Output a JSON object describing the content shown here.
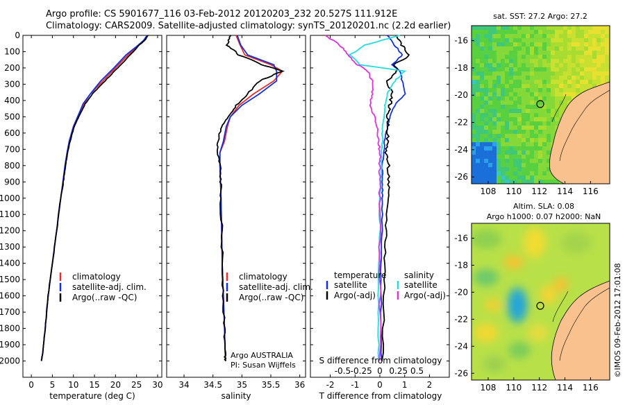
{
  "header": {
    "line1": "Argo profile: CS 5901677_116 03-Feb-2012 20120203_232 20.527S 111.912E",
    "line2": "Climatology: CARS2009. Satellite-adjusted climatology: synTS_20120201.nc (2.2d earlier)"
  },
  "colors": {
    "climatology": "#ee2a24",
    "satellite": "#1030e0",
    "argo": "#000000",
    "sal_sat": "#22dddd",
    "sal_argo": "#e030d8"
  },
  "chart_data": [
    {
      "type": "line",
      "title": "",
      "xlabel": "temperature (deg C)",
      "ylabel": "",
      "xlim": [
        -2,
        31
      ],
      "ylim": [
        2100,
        0
      ],
      "xticks": [
        0,
        5,
        10,
        15,
        20,
        25,
        30
      ],
      "yticks": [
        0,
        100,
        200,
        300,
        400,
        500,
        600,
        700,
        800,
        900,
        1000,
        1100,
        1200,
        1300,
        1400,
        1500,
        1600,
        1700,
        1800,
        1900,
        2000
      ],
      "legend": [
        "climatology",
        "satellite-adj. clim.",
        "Argo(..raw -QC)"
      ],
      "series": [
        {
          "name": "climatology",
          "x": [
            27.6,
            26.8,
            25.6,
            23,
            20,
            17,
            14,
            12.5,
            11,
            10,
            9,
            8.5,
            8,
            7.5,
            7,
            6,
            5,
            4,
            3.3,
            2.7,
            2.4
          ],
          "y": [
            0,
            30,
            60,
            120,
            200,
            280,
            360,
            420,
            500,
            560,
            650,
            720,
            800,
            900,
            1000,
            1200,
            1400,
            1600,
            1800,
            1950,
            2000
          ]
        },
        {
          "name": "satellite-adj. clim.",
          "x": [
            27.5,
            26.7,
            25.4,
            22.5,
            19.6,
            16.5,
            14,
            12.3,
            11,
            10,
            9,
            8.5,
            8,
            7.5,
            7,
            6,
            5,
            4,
            3.3,
            2.7,
            2.4
          ],
          "y": [
            0,
            30,
            60,
            120,
            200,
            280,
            360,
            420,
            500,
            560,
            650,
            720,
            800,
            900,
            1000,
            1200,
            1400,
            1600,
            1800,
            1950,
            2000
          ]
        },
        {
          "name": "Argo(..raw -QC)",
          "x": [
            27.7,
            27,
            25.6,
            23.5,
            20.5,
            17.5,
            14.5,
            12.8,
            11.2,
            10.2,
            9.2,
            8.6,
            8.1,
            7.6,
            7,
            6,
            5,
            4,
            3.3,
            2.7,
            2.4
          ],
          "y": [
            0,
            30,
            60,
            120,
            200,
            280,
            360,
            420,
            500,
            560,
            650,
            720,
            800,
            900,
            1000,
            1200,
            1400,
            1600,
            1800,
            1950,
            2000
          ]
        }
      ]
    },
    {
      "type": "line",
      "title": "",
      "xlabel": "salinity",
      "ylabel": "",
      "xlim": [
        33.7,
        36.1
      ],
      "ylim": [
        2100,
        0
      ],
      "xticks": [
        34,
        34.5,
        35,
        35.5,
        36
      ],
      "legend": [
        "climatology",
        "satellite-adj. clim.",
        "Argo(..raw -QC)"
      ],
      "annotations": [
        "Argo AUSTRALIA",
        "PI: Susan Wijffels"
      ],
      "series": [
        {
          "name": "climatology",
          "x": [
            34.9,
            34.97,
            35.05,
            35.5,
            35.7,
            35.55,
            35.2,
            34.95,
            34.8,
            34.75,
            34.7,
            34.62,
            34.62,
            34.63,
            34.64,
            34.65,
            34.66,
            34.68,
            34.7,
            34.71,
            34.72
          ],
          "y": [
            0,
            60,
            120,
            180,
            220,
            280,
            360,
            430,
            500,
            560,
            650,
            720,
            800,
            900,
            1000,
            1200,
            1400,
            1600,
            1800,
            1950,
            2000
          ]
        },
        {
          "name": "satellite-adj. clim.",
          "x": [
            34.92,
            34.98,
            35.1,
            35.55,
            35.6,
            35.6,
            35.3,
            35.0,
            34.8,
            34.73,
            34.68,
            34.62,
            34.62,
            34.63,
            34.64,
            34.65,
            34.66,
            34.68,
            34.7,
            34.71,
            34.72
          ],
          "y": [
            0,
            60,
            120,
            180,
            220,
            280,
            360,
            430,
            500,
            560,
            650,
            720,
            800,
            900,
            1000,
            1200,
            1400,
            1600,
            1800,
            1950,
            2000
          ]
        },
        {
          "name": "Argo(..raw -QC)",
          "x": [
            34.8,
            34.75,
            34.95,
            35.35,
            35.7,
            35.3,
            35.1,
            34.9,
            34.75,
            34.65,
            34.58,
            34.57,
            34.62,
            34.63,
            34.64,
            34.65,
            34.66,
            34.68,
            34.7,
            34.71,
            34.72
          ],
          "y": [
            0,
            60,
            120,
            180,
            220,
            280,
            360,
            430,
            500,
            560,
            650,
            720,
            800,
            900,
            1000,
            1200,
            1400,
            1600,
            1800,
            1950,
            2000
          ]
        }
      ]
    },
    {
      "type": "line",
      "title": "",
      "xlabel": "T difference from climatology",
      "x2label": "S difference from climatology",
      "xlim": [
        -2.8,
        2.8
      ],
      "ylim": [
        2100,
        0
      ],
      "xticks": [
        -2,
        -1,
        0,
        1,
        2
      ],
      "x2ticks_labels": [
        "-0.5",
        "-0.25",
        "0",
        "0.25",
        "0.5"
      ],
      "legend_temperature_title": "temperature",
      "legend_salinity_title": "salinity",
      "legend": [
        "satellite",
        "Argo(-adj)",
        "satellite",
        "Argo(-adj)"
      ],
      "series": [
        {
          "name": "temperature satellite",
          "x": [
            0.3,
            0.6,
            0.9,
            0.5,
            0.8,
            0.9,
            1.0,
            0.6,
            0.4,
            0.3,
            0.2,
            0.15,
            0.1,
            0.1,
            0.1,
            0.1,
            0.05,
            0.05,
            0.05
          ],
          "y": [
            0,
            60,
            120,
            180,
            220,
            280,
            360,
            430,
            500,
            560,
            650,
            720,
            800,
            900,
            1000,
            1200,
            1400,
            1700,
            2000
          ]
        },
        {
          "name": "temperature Argo(-adj)",
          "x": [
            0.7,
            0.9,
            1.2,
            0.6,
            0.7,
            0.3,
            0.5,
            0.4,
            0.3,
            0.35,
            0.3,
            0.25,
            0.35,
            0.35,
            0.3,
            0.25,
            0.2,
            0.15,
            0.1
          ],
          "y": [
            0,
            60,
            120,
            180,
            220,
            280,
            360,
            430,
            500,
            560,
            650,
            720,
            800,
            900,
            1000,
            1200,
            1400,
            1700,
            2000
          ]
        },
        {
          "name": "salinity satellite",
          "x": [
            0.8,
            -0.6,
            -1.2,
            -0.8,
            1.0,
            0.6,
            0.3,
            0.2,
            0.15,
            0.1,
            0.1,
            0.05,
            0.05,
            0.05,
            0.0,
            0.0,
            -0.05,
            -0.05,
            -0.05
          ],
          "y": [
            0,
            60,
            120,
            180,
            220,
            280,
            360,
            430,
            500,
            560,
            650,
            720,
            800,
            900,
            1000,
            1200,
            1400,
            1700,
            2000
          ]
        },
        {
          "name": "salinity Argo(-adj)",
          "x": [
            -2.2,
            -1.6,
            -1.3,
            -0.9,
            -0.5,
            -0.3,
            -0.3,
            -0.4,
            -0.2,
            -0.1,
            -0.05,
            0.0,
            0.0,
            0.0,
            0.0,
            0.0,
            0.0,
            0.0,
            0.0
          ],
          "y": [
            0,
            60,
            120,
            180,
            220,
            280,
            360,
            430,
            500,
            560,
            650,
            720,
            800,
            900,
            1000,
            1200,
            1400,
            1700,
            2000
          ]
        }
      ]
    },
    {
      "type": "heatmap",
      "title": "sat. SST: 27.2  Argo: 27.2",
      "xticks": [
        108,
        110,
        112,
        114,
        116
      ],
      "yticks": [
        -16,
        -18,
        -20,
        -22,
        -24,
        -26
      ],
      "marker": {
        "lon": 111.9,
        "lat": -20.5
      }
    },
    {
      "type": "heatmap",
      "title_line1": "Altim. SLA: 0.08",
      "title_line2": "Argo h1000: 0.07 h2000: NaN",
      "xticks": [
        108,
        110,
        112,
        114,
        116
      ],
      "yticks": [
        -16,
        -18,
        -20,
        -22,
        -24,
        -26
      ],
      "marker": {
        "lon": 111.9,
        "lat": -20.5
      }
    }
  ],
  "footer": {
    "credit": "©IMOS 09-Feb-2012 17:01:08"
  }
}
